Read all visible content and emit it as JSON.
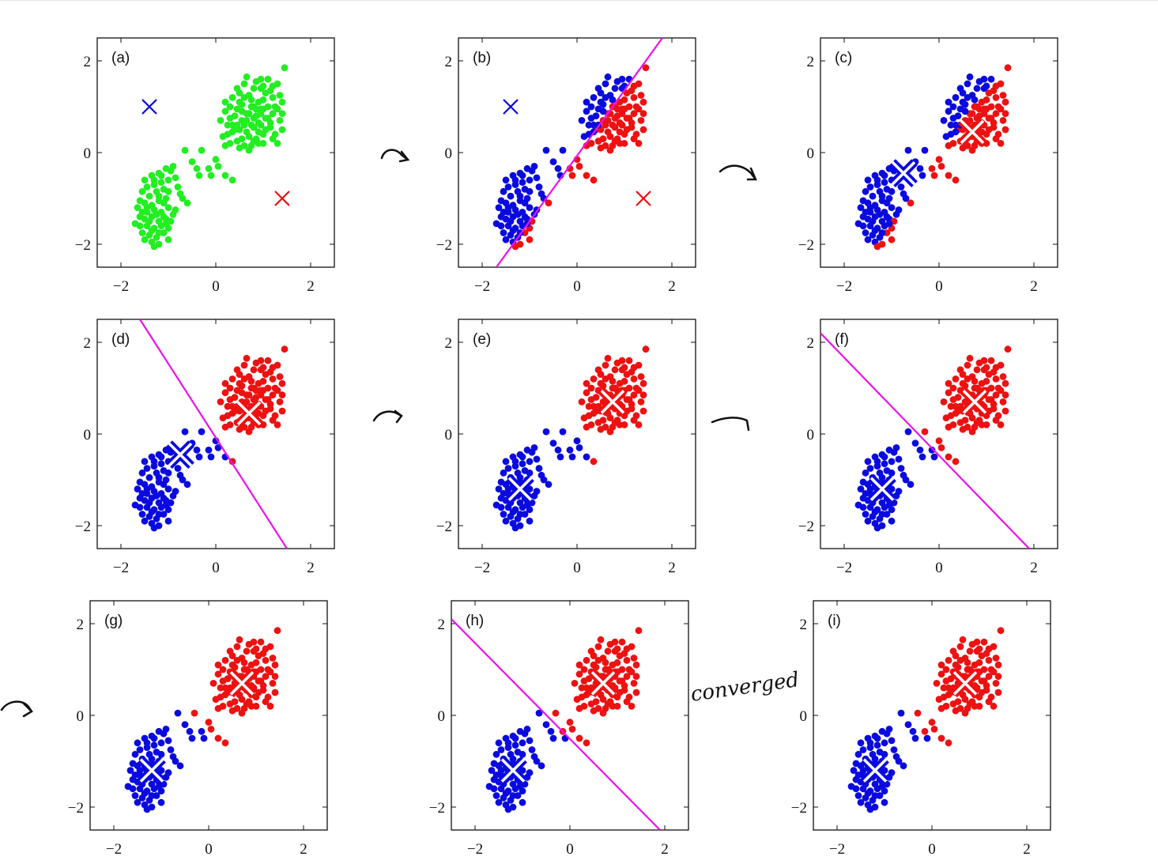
{
  "colors": {
    "green": "#22ee22",
    "blue": "#0a0ae0",
    "red": "#ee1111",
    "boundary": "#ee11ee",
    "frame": "#111111"
  },
  "annotations": {
    "converged_note": "converged",
    "arrow_icon": "hand-drawn-arrow"
  },
  "chart_data": [
    {
      "type": "scatter",
      "label": "(a)",
      "xlim": [
        -2.5,
        2.5
      ],
      "ylim": [
        -2.5,
        2.5
      ],
      "xticks": [
        -2,
        0,
        2
      ],
      "yticks": [
        -2,
        0,
        2
      ],
      "xtick_labels": [
        "−2",
        "0",
        "2"
      ],
      "ytick_labels": [
        "−2",
        "0",
        "2"
      ],
      "coloring": "unassigned",
      "centroids": [
        {
          "x": -1.4,
          "y": 1.0,
          "color": "blue"
        },
        {
          "x": 1.4,
          "y": -1.0,
          "color": "red"
        }
      ],
      "centroid_style": "small",
      "boundary": null
    },
    {
      "type": "scatter",
      "label": "(b)",
      "xlim": [
        -2.5,
        2.5
      ],
      "ylim": [
        -2.5,
        2.5
      ],
      "xticks": [
        -2,
        0,
        2
      ],
      "yticks": [
        -2,
        0,
        2
      ],
      "xtick_labels": [
        "−2",
        "0",
        "2"
      ],
      "ytick_labels": [
        "−2",
        "0",
        "2"
      ],
      "coloring": "boundary",
      "centroids": [
        {
          "x": -1.4,
          "y": 1.0,
          "color": "blue"
        },
        {
          "x": 1.4,
          "y": -1.0,
          "color": "red"
        }
      ],
      "centroid_style": "small",
      "boundary": [
        [
          -1.7,
          -2.5
        ],
        [
          1.8,
          2.5
        ]
      ]
    },
    {
      "type": "scatter",
      "label": "(c)",
      "xlim": [
        -2.5,
        2.5
      ],
      "ylim": [
        -2.5,
        2.5
      ],
      "xticks": [
        -2,
        0,
        2
      ],
      "yticks": [
        -2,
        0,
        2
      ],
      "xtick_labels": [
        "−2",
        "0",
        "2"
      ],
      "ytick_labels": [
        "−2",
        "0",
        "2"
      ],
      "coloring": "line",
      "line": [
        [
          -1.7,
          -2.5
        ],
        [
          1.8,
          2.5
        ]
      ],
      "centroids": [
        {
          "x": -0.75,
          "y": -0.45,
          "color": "blue"
        },
        {
          "x": 0.7,
          "y": 0.45,
          "color": "red"
        }
      ],
      "centroid_style": "bold",
      "boundary": null
    },
    {
      "type": "scatter",
      "label": "(d)",
      "xlim": [
        -2.5,
        2.5
      ],
      "ylim": [
        -2.5,
        2.5
      ],
      "xticks": [
        -2,
        0,
        2
      ],
      "yticks": [
        -2,
        0,
        2
      ],
      "xtick_labels": [
        "−2",
        "0",
        "2"
      ],
      "ytick_labels": [
        "−2",
        "0",
        "2"
      ],
      "coloring": "line",
      "line": [
        [
          -1.6,
          2.5
        ],
        [
          1.5,
          -2.5
        ]
      ],
      "centroids": [
        {
          "x": -0.75,
          "y": -0.45,
          "color": "blue"
        },
        {
          "x": 0.7,
          "y": 0.45,
          "color": "red"
        }
      ],
      "centroid_style": "bold",
      "boundary": [
        [
          -1.6,
          2.5
        ],
        [
          1.5,
          -2.5
        ]
      ]
    },
    {
      "type": "scatter",
      "label": "(e)",
      "xlim": [
        -2.5,
        2.5
      ],
      "ylim": [
        -2.5,
        2.5
      ],
      "xticks": [
        -2,
        0,
        2
      ],
      "yticks": [
        -2,
        0,
        2
      ],
      "xtick_labels": [
        "−2",
        "0",
        "2"
      ],
      "ytick_labels": [
        "−2",
        "0",
        "2"
      ],
      "coloring": "line",
      "line": [
        [
          -1.6,
          2.5
        ],
        [
          1.5,
          -2.5
        ]
      ],
      "centroids": [
        {
          "x": -1.2,
          "y": -1.2,
          "color": "blue"
        },
        {
          "x": 0.75,
          "y": 0.7,
          "color": "red"
        }
      ],
      "centroid_style": "bold",
      "boundary": null
    },
    {
      "type": "scatter",
      "label": "(f)",
      "xlim": [
        -2.5,
        2.5
      ],
      "ylim": [
        -2.5,
        2.5
      ],
      "xticks": [
        -2,
        0,
        2
      ],
      "yticks": [
        -2,
        0,
        2
      ],
      "xtick_labels": [
        "−2",
        "0",
        "2"
      ],
      "ytick_labels": [
        "−2",
        "0",
        "2"
      ],
      "coloring": "line",
      "line": [
        [
          -2.5,
          2.2
        ],
        [
          1.9,
          -2.5
        ]
      ],
      "centroids": [
        {
          "x": -1.2,
          "y": -1.2,
          "color": "blue"
        },
        {
          "x": 0.75,
          "y": 0.7,
          "color": "red"
        }
      ],
      "centroid_style": "bold",
      "boundary": [
        [
          -2.5,
          2.2
        ],
        [
          1.9,
          -2.5
        ]
      ]
    },
    {
      "type": "scatter",
      "label": "(g)",
      "xlim": [
        -2.5,
        2.5
      ],
      "ylim": [
        -2.5,
        2.5
      ],
      "xticks": [
        -2,
        0,
        2
      ],
      "yticks": [
        -2,
        0,
        2
      ],
      "xtick_labels": [
        "−2",
        "0",
        "2"
      ],
      "ytick_labels": [
        "−2",
        "0",
        "2"
      ],
      "coloring": "line",
      "line": [
        [
          -2.5,
          2.2
        ],
        [
          1.9,
          -2.5
        ]
      ],
      "centroids": [
        {
          "x": -1.2,
          "y": -1.2,
          "color": "blue"
        },
        {
          "x": 0.7,
          "y": 0.7,
          "color": "red"
        }
      ],
      "centroid_style": "bold",
      "boundary": null
    },
    {
      "type": "scatter",
      "label": "(h)",
      "xlim": [
        -2.5,
        2.5
      ],
      "ylim": [
        -2.5,
        2.5
      ],
      "xticks": [
        -2,
        0,
        2
      ],
      "yticks": [
        -2,
        0,
        2
      ],
      "xtick_labels": [
        "−2",
        "0",
        "2"
      ],
      "ytick_labels": [
        "−2",
        "0",
        "2"
      ],
      "coloring": "line",
      "line": [
        [
          -2.5,
          2.1
        ],
        [
          1.9,
          -2.5
        ]
      ],
      "centroids": [
        {
          "x": -1.2,
          "y": -1.2,
          "color": "blue"
        },
        {
          "x": 0.7,
          "y": 0.7,
          "color": "red"
        }
      ],
      "centroid_style": "bold",
      "boundary": [
        [
          -2.5,
          2.1
        ],
        [
          1.9,
          -2.5
        ]
      ]
    },
    {
      "type": "scatter",
      "label": "(i)",
      "xlim": [
        -2.5,
        2.5
      ],
      "ylim": [
        -2.5,
        2.5
      ],
      "xticks": [
        -2,
        0,
        2
      ],
      "yticks": [
        -2,
        0,
        2
      ],
      "xtick_labels": [
        "−2",
        "0",
        "2"
      ],
      "ytick_labels": [
        "−2",
        "0",
        "2"
      ],
      "coloring": "line",
      "line": [
        [
          -2.5,
          2.1
        ],
        [
          1.9,
          -2.5
        ]
      ],
      "centroids": [
        {
          "x": -1.2,
          "y": -1.2,
          "color": "blue"
        },
        {
          "x": 0.7,
          "y": 0.7,
          "color": "red"
        }
      ],
      "centroid_style": "bold",
      "boundary": null
    }
  ],
  "points": [
    [
      -1.35,
      -0.5
    ],
    [
      -1.2,
      -0.45
    ],
    [
      -1.05,
      -0.35
    ],
    [
      -0.9,
      -0.3
    ],
    [
      -0.65,
      0.05
    ],
    [
      -1.5,
      -0.6
    ],
    [
      -1.45,
      -0.75
    ],
    [
      -1.3,
      -0.7
    ],
    [
      -1.15,
      -0.65
    ],
    [
      -1.0,
      -0.6
    ],
    [
      -0.85,
      -0.55
    ],
    [
      -0.95,
      -0.4
    ],
    [
      -1.55,
      -0.85
    ],
    [
      -1.4,
      -0.95
    ],
    [
      -1.25,
      -0.85
    ],
    [
      -1.1,
      -0.8
    ],
    [
      -0.8,
      -0.75
    ],
    [
      -0.6,
      -1.1
    ],
    [
      -0.7,
      -1.0
    ],
    [
      -1.6,
      -1.05
    ],
    [
      -1.5,
      -1.1
    ],
    [
      -1.35,
      -1.15
    ],
    [
      -1.2,
      -1.05
    ],
    [
      -1.05,
      -1.0
    ],
    [
      -1.65,
      -1.2
    ],
    [
      -1.45,
      -1.3
    ],
    [
      -1.3,
      -1.25
    ],
    [
      -1.15,
      -1.3
    ],
    [
      -1.0,
      -1.2
    ],
    [
      -0.85,
      -1.25
    ],
    [
      -1.6,
      -1.4
    ],
    [
      -1.5,
      -1.45
    ],
    [
      -1.35,
      -1.4
    ],
    [
      -1.2,
      -1.5
    ],
    [
      -1.05,
      -1.45
    ],
    [
      -0.9,
      -1.35
    ],
    [
      -1.7,
      -1.55
    ],
    [
      -1.45,
      -1.6
    ],
    [
      -1.3,
      -1.65
    ],
    [
      -1.15,
      -1.6
    ],
    [
      -1.0,
      -1.65
    ],
    [
      -1.55,
      -1.75
    ],
    [
      -1.4,
      -1.8
    ],
    [
      -1.25,
      -1.85
    ],
    [
      -1.1,
      -1.75
    ],
    [
      -1.5,
      -1.9
    ],
    [
      -1.35,
      -1.95
    ],
    [
      -1.2,
      -2.0
    ],
    [
      -1.3,
      -2.05
    ],
    [
      -1.0,
      -1.9
    ],
    [
      -1.4,
      -1.5
    ],
    [
      -1.25,
      -1.35
    ],
    [
      -1.1,
      -1.1
    ],
    [
      -1.2,
      -0.95
    ],
    [
      -0.75,
      -0.9
    ],
    [
      -1.0,
      -0.85
    ],
    [
      -1.45,
      -1.2
    ],
    [
      -1.3,
      -0.6
    ],
    [
      -1.6,
      -1.6
    ],
    [
      -0.95,
      -1.5
    ],
    [
      -1.1,
      -1.4
    ],
    [
      -1.35,
      -1.7
    ],
    [
      -1.55,
      -1.3
    ],
    [
      -1.2,
      -1.75
    ],
    [
      -1.05,
      -1.55
    ],
    [
      -1.15,
      -0.5
    ],
    [
      -0.5,
      -0.2
    ],
    [
      -0.4,
      -0.35
    ],
    [
      -0.3,
      0.05
    ],
    [
      -0.35,
      -0.5
    ],
    [
      -0.15,
      -0.35
    ],
    [
      -0.1,
      -0.5
    ],
    [
      0.05,
      -0.3
    ],
    [
      0.0,
      -0.15
    ],
    [
      0.2,
      -0.5
    ],
    [
      0.35,
      -0.6
    ],
    [
      0.1,
      0.7
    ],
    [
      0.2,
      0.9
    ],
    [
      0.3,
      0.75
    ],
    [
      0.35,
      1.2
    ],
    [
      0.4,
      0.5
    ],
    [
      0.45,
      0.95
    ],
    [
      0.5,
      1.3
    ],
    [
      0.55,
      0.7
    ],
    [
      0.55,
      1.05
    ],
    [
      0.6,
      1.5
    ],
    [
      0.65,
      0.85
    ],
    [
      0.65,
      0.45
    ],
    [
      0.7,
      1.25
    ],
    [
      0.75,
      0.6
    ],
    [
      0.75,
      1.0
    ],
    [
      0.8,
      1.4
    ],
    [
      0.85,
      0.8
    ],
    [
      0.85,
      0.3
    ],
    [
      0.9,
      1.1
    ],
    [
      0.95,
      0.6
    ],
    [
      0.95,
      1.6
    ],
    [
      1.0,
      0.95
    ],
    [
      1.0,
      0.4
    ],
    [
      1.05,
      1.3
    ],
    [
      1.1,
      0.75
    ],
    [
      1.1,
      1.0
    ],
    [
      1.15,
      0.55
    ],
    [
      1.2,
      1.2
    ],
    [
      1.2,
      0.85
    ],
    [
      1.25,
      0.4
    ],
    [
      1.3,
      1.5
    ],
    [
      1.3,
      0.95
    ],
    [
      1.35,
      0.7
    ],
    [
      1.4,
      1.1
    ],
    [
      1.45,
      1.85
    ],
    [
      0.25,
      0.4
    ],
    [
      0.3,
      0.2
    ],
    [
      0.45,
      0.25
    ],
    [
      0.5,
      0.5
    ],
    [
      0.6,
      0.15
    ],
    [
      0.7,
      0.35
    ],
    [
      0.75,
      0.15
    ],
    [
      0.8,
      0.55
    ],
    [
      0.9,
      0.2
    ],
    [
      1.0,
      0.2
    ],
    [
      1.05,
      0.5
    ],
    [
      0.15,
      0.35
    ],
    [
      0.2,
      0.15
    ],
    [
      0.35,
      0.6
    ],
    [
      0.45,
      1.4
    ],
    [
      0.5,
      0.1
    ],
    [
      0.55,
      0.3
    ],
    [
      0.65,
      1.65
    ],
    [
      0.7,
      0.05
    ],
    [
      0.8,
      1.0
    ],
    [
      0.85,
      1.55
    ],
    [
      0.9,
      0.45
    ],
    [
      0.95,
      0.85
    ],
    [
      1.05,
      0.75
    ],
    [
      1.15,
      1.35
    ],
    [
      1.2,
      0.3
    ],
    [
      1.25,
      1.0
    ],
    [
      1.3,
      0.2
    ],
    [
      1.35,
      1.25
    ],
    [
      1.4,
      0.85
    ],
    [
      0.4,
      0.8
    ],
    [
      0.6,
      0.6
    ],
    [
      0.7,
      0.85
    ],
    [
      0.8,
      0.75
    ],
    [
      0.9,
      0.65
    ],
    [
      1.0,
      1.15
    ],
    [
      0.55,
      0.9
    ],
    [
      0.75,
      1.15
    ],
    [
      0.85,
      0.95
    ],
    [
      0.65,
      0.7
    ],
    [
      0.95,
      1.4
    ],
    [
      1.15,
      0.65
    ],
    [
      0.45,
      0.6
    ],
    [
      0.3,
      1.0
    ],
    [
      1.1,
      1.6
    ],
    [
      0.2,
      1.1
    ],
    [
      0.5,
      1.1
    ],
    [
      1.0,
      1.45
    ],
    [
      1.4,
      0.5
    ],
    [
      0.6,
      1.2
    ],
    [
      0.8,
      0.25
    ],
    [
      0.35,
      0.45
    ],
    [
      0.95,
      0.95
    ],
    [
      1.2,
      1.45
    ],
    [
      0.25,
      0.6
    ]
  ]
}
